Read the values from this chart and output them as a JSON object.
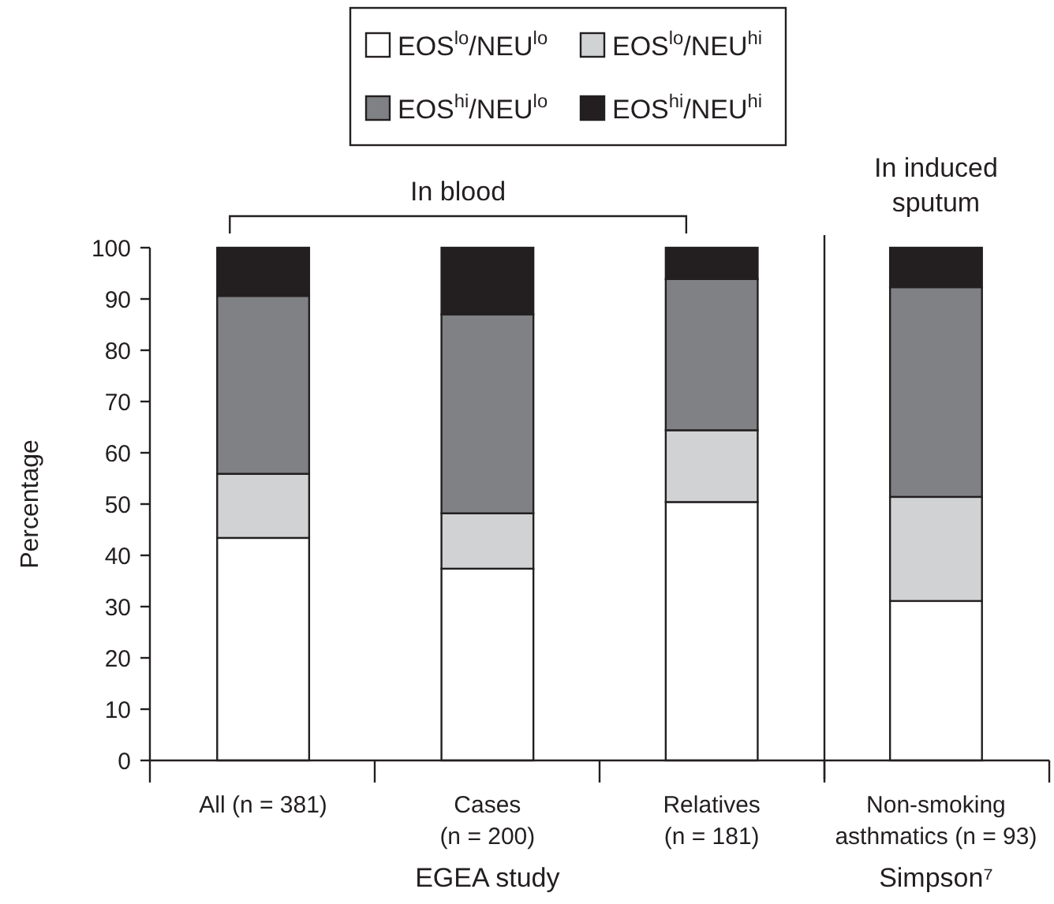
{
  "chart_data": {
    "type": "bar",
    "stacked": true,
    "ylabel": "Percentage",
    "categories": [
      "All (n = 381)",
      "Cases\n(n = 200)",
      "Relatives\n(n = 181)",
      "Non-smoking\nasthmatics (n = 93)"
    ],
    "series": [
      {
        "name": "EOS$^{lo}$/NEU$^{lo}$",
        "color": "#ffffff",
        "values": [
          43.4,
          37.4,
          50.4,
          31.1
        ]
      },
      {
        "name": "EOS$^{lo}$/NEU$^{hi}$",
        "color": "#d1d2d4",
        "values": [
          12.5,
          10.8,
          14.0,
          20.3
        ]
      },
      {
        "name": "EOS$^{hi}$/NEU$^{lo}$",
        "color": "#808184",
        "values": [
          34.7,
          38.8,
          29.5,
          40.9
        ]
      },
      {
        "name": "EOS$^{hi}$/NEU$^{hi}$",
        "color": "#231f20",
        "values": [
          9.4,
          13.0,
          6.1,
          7.7
        ]
      }
    ],
    "ylim": [
      0,
      100
    ],
    "yticks": [
      0,
      10,
      20,
      30,
      40,
      50,
      60,
      70,
      80,
      90,
      100
    ],
    "grid": false,
    "legend": "top",
    "annotations": [
      "In blood",
      "In induced\nsputum",
      "EGEA study",
      "Simpson⁷"
    ]
  }
}
